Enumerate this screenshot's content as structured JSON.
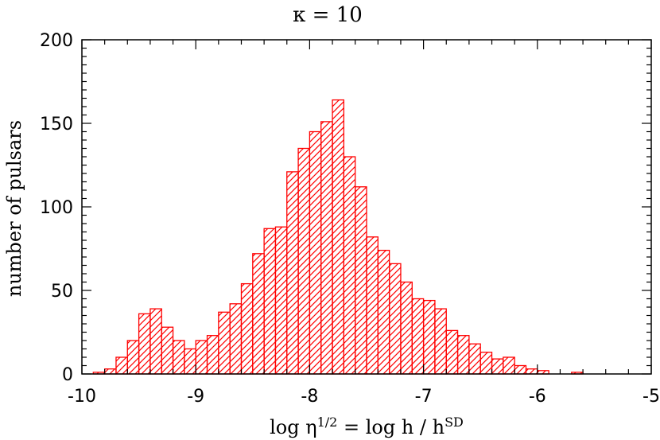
{
  "chart_data": {
    "type": "bar",
    "title": "κ = 10",
    "xlabel": {
      "prefix": "log η",
      "prefix_sup": "1/2",
      "middle": " = log h / h",
      "middle_sup": "SD"
    },
    "ylabel": "number of pulsars",
    "xlim": [
      -10,
      -5
    ],
    "ylim": [
      0,
      200
    ],
    "x_ticks": [
      "-10",
      "-9",
      "-8",
      "-7",
      "-6",
      "-5"
    ],
    "y_ticks": [
      "0",
      "50",
      "100",
      "150",
      "200"
    ],
    "grid": false,
    "legend": "none",
    "bar_color": "#ff0000",
    "fill_pattern": "diagonal hatch",
    "bin_width": 0.1,
    "bin_left_edges": [
      -9.9,
      -9.8,
      -9.7,
      -9.6,
      -9.5,
      -9.4,
      -9.3,
      -9.2,
      -9.1,
      -9.0,
      -8.9,
      -8.8,
      -8.7,
      -8.6,
      -8.5,
      -8.4,
      -8.3,
      -8.2,
      -8.1,
      -8.0,
      -7.9,
      -7.8,
      -7.7,
      -7.6,
      -7.5,
      -7.4,
      -7.3,
      -7.2,
      -7.1,
      -7.0,
      -6.9,
      -6.8,
      -6.7,
      -6.6,
      -6.5,
      -6.4,
      -6.3,
      -6.2,
      -6.1,
      -6.0,
      -5.9,
      -5.8,
      -5.7
    ],
    "values": [
      1,
      3,
      10,
      20,
      36,
      39,
      28,
      20,
      15,
      20,
      23,
      37,
      42,
      54,
      72,
      87,
      88,
      121,
      135,
      145,
      151,
      164,
      130,
      112,
      82,
      74,
      66,
      55,
      45,
      44,
      39,
      26,
      23,
      18,
      13,
      9,
      10,
      5,
      3,
      2,
      0,
      0,
      1
    ]
  }
}
